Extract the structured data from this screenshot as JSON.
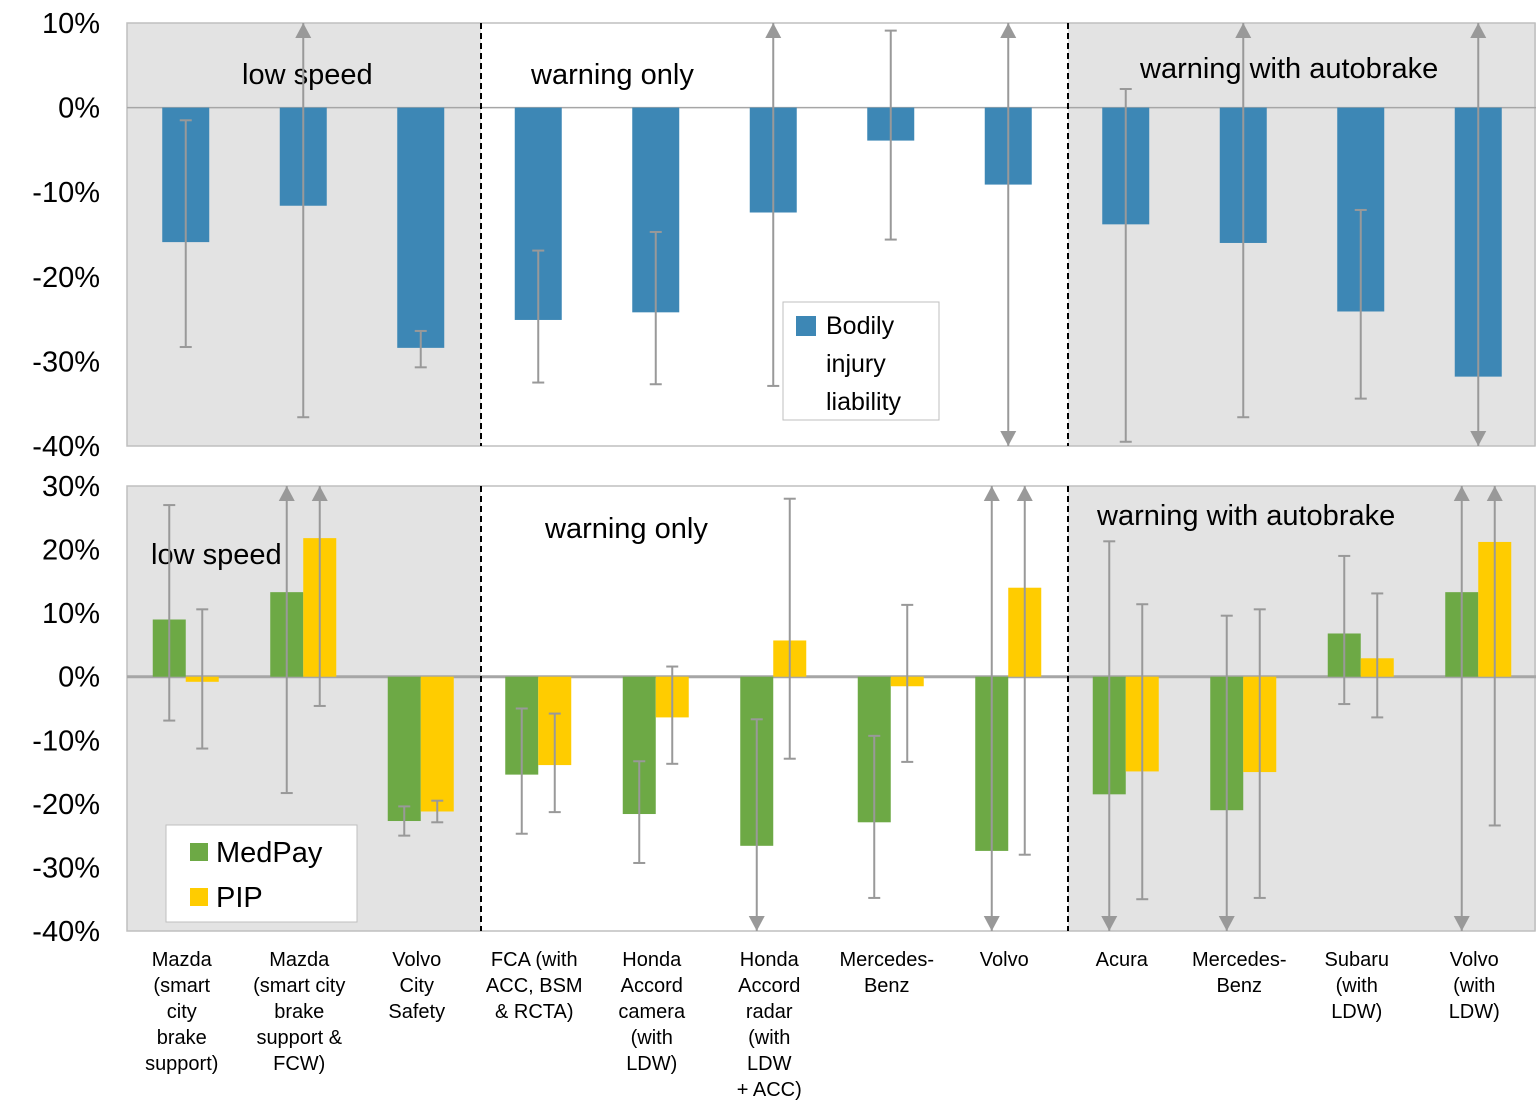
{
  "chart_data": [
    {
      "type": "bar",
      "panel": "top",
      "categories": [
        "Mazda (smart city brake support)",
        "Mazda (smart city brake support & FCW)",
        "Volvo City Safety",
        "FCA (with ACC, BSM & RCTA)",
        "Honda Accord camera (with LDW)",
        "Honda Accord radar (with LDW + ACC)",
        "Mercedes-Benz",
        "Volvo",
        "Acura",
        "Mercedes-Benz",
        "Subaru (with LDW)",
        "Volvo (with LDW)"
      ],
      "ylim": [
        -40,
        10
      ],
      "yticks": [
        10,
        0,
        -10,
        -20,
        -30,
        -40
      ],
      "tick_labels": [
        "10%",
        "0%",
        "-10%",
        "-20%",
        "-30%",
        "-40%"
      ],
      "groups": [
        "low speed",
        "warning only",
        "warning with autobrake"
      ],
      "legend_position": "center",
      "series": [
        {
          "name": "Bodily injury liability",
          "legend_lines": [
            "Bodily",
            "injury",
            "liability"
          ],
          "color": "#3D87B5",
          "values": [
            -15.9,
            -11.6,
            -28.4,
            -25.1,
            -24.2,
            -12.4,
            -3.9,
            -9.1,
            -13.8,
            -16.0,
            -24.1,
            -31.8
          ],
          "err_low": [
            -28.3,
            -36.6,
            -30.7,
            -32.5,
            -32.7,
            -32.9,
            -15.6,
            -40,
            -39.5,
            -36.6,
            -34.4,
            -40
          ],
          "err_high": [
            -1.5,
            10,
            -26.4,
            -16.9,
            -14.7,
            10,
            9.1,
            10,
            2.2,
            10,
            -12.1,
            10
          ]
        }
      ]
    },
    {
      "type": "bar",
      "panel": "bottom",
      "categories": [
        "Mazda (smart city brake support)",
        "Mazda (smart city brake support & FCW)",
        "Volvo City Safety",
        "FCA (with ACC, BSM & RCTA)",
        "Honda Accord camera (with LDW)",
        "Honda Accord radar (with LDW + ACC)",
        "Mercedes-Benz",
        "Volvo",
        "Acura",
        "Mercedes-Benz",
        "Subaru (with LDW)",
        "Volvo (with LDW)"
      ],
      "category_lines": [
        [
          "Mazda",
          "(smart",
          "city",
          "brake",
          "support)"
        ],
        [
          "Mazda",
          "(smart city",
          "brake",
          "support &",
          "FCW)"
        ],
        [
          "Volvo",
          "City",
          "Safety"
        ],
        [
          "FCA (with",
          "ACC, BSM",
          "& RCTA)"
        ],
        [
          "Honda",
          "Accord",
          "camera",
          "(with",
          "LDW)"
        ],
        [
          "Honda",
          "Accord",
          "radar",
          "(with",
          "LDW",
          "+ ACC)"
        ],
        [
          "Mercedes-",
          "Benz"
        ],
        [
          "Volvo"
        ],
        [
          "Acura"
        ],
        [
          "Mercedes-",
          "Benz"
        ],
        [
          "Subaru",
          "(with",
          "LDW)"
        ],
        [
          "Volvo",
          "(with",
          "LDW)"
        ]
      ],
      "ylim": [
        -40,
        30
      ],
      "yticks": [
        30,
        20,
        10,
        0,
        -10,
        -20,
        -30,
        -40
      ],
      "tick_labels": [
        "30%",
        "20%",
        "10%",
        "0%",
        "-10%",
        "-20%",
        "-30%",
        "-40%"
      ],
      "groups": [
        "low speed",
        "warning only",
        "warning with autobrake"
      ],
      "legend_position": "bottom-left",
      "series": [
        {
          "name": "MedPay",
          "color": "#6DA945",
          "values": [
            9.0,
            13.3,
            -22.7,
            -15.4,
            -21.6,
            -26.6,
            -22.9,
            -27.4,
            -18.5,
            -21.0,
            6.8,
            13.3
          ],
          "err_low": [
            -6.9,
            -18.3,
            -25.0,
            -24.7,
            -29.3,
            -40,
            -34.8,
            -40,
            -40,
            -40,
            -4.3,
            -40
          ],
          "err_high": [
            27.0,
            30,
            -20.4,
            -5.0,
            -13.3,
            -6.7,
            -9.3,
            30,
            21.3,
            9.6,
            19.0,
            30
          ]
        },
        {
          "name": "PIP",
          "color": "#FFCC00",
          "values": [
            -0.8,
            21.8,
            -21.2,
            -13.9,
            -6.4,
            5.7,
            -1.5,
            14.0,
            -14.9,
            -15.0,
            2.9,
            21.2
          ],
          "err_low": [
            -11.3,
            -4.6,
            -22.9,
            -21.3,
            -13.7,
            -12.9,
            -13.4,
            -28.0,
            -35.0,
            -34.8,
            -6.4,
            -23.4
          ],
          "err_high": [
            10.6,
            30,
            -19.5,
            -5.8,
            1.6,
            28.0,
            11.3,
            30,
            11.4,
            10.6,
            13.1,
            30
          ]
        }
      ]
    }
  ]
}
